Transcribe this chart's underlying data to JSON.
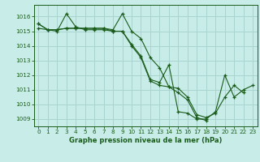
{
  "title": "Graphe pression niveau de la mer (hPa)",
  "bg_color": "#c8ece8",
  "grid_color": "#aad4d0",
  "line_color": "#1a5c1a",
  "xlim": [
    -0.5,
    23.5
  ],
  "ylim": [
    1008.5,
    1016.8
  ],
  "yticks": [
    1009,
    1010,
    1011,
    1012,
    1013,
    1014,
    1015,
    1016
  ],
  "xticks": [
    0,
    1,
    2,
    3,
    4,
    5,
    6,
    7,
    8,
    9,
    10,
    11,
    12,
    13,
    14,
    15,
    16,
    17,
    18,
    19,
    20,
    21,
    22,
    23
  ],
  "series1": [
    1015.2,
    1015.1,
    1015.0,
    1016.2,
    1015.3,
    1015.1,
    1015.1,
    1015.1,
    1015.0,
    1015.0,
    1014.1,
    1013.3,
    1011.7,
    1011.5,
    1012.7,
    1009.5,
    1009.4,
    1009.0,
    1009.0,
    1009.5,
    1012.0,
    1010.5,
    1011.0,
    1011.3
  ],
  "series2": [
    1015.5,
    1015.1,
    1015.1,
    1015.2,
    1015.2,
    1015.2,
    1015.2,
    1015.2,
    1015.1,
    1016.2,
    1015.0,
    1014.5,
    1013.2,
    1012.5,
    1011.2,
    1011.1,
    1010.5,
    1009.3,
    1009.1,
    1009.4,
    1010.5,
    1011.3,
    1010.8,
    null
  ],
  "series3": [
    1015.5,
    1015.1,
    1015.1,
    1015.2,
    1015.2,
    1015.2,
    1015.2,
    1015.2,
    1015.0,
    1015.0,
    1014.0,
    1013.2,
    1011.6,
    1011.3,
    1011.2,
    1010.8,
    1010.3,
    1009.1,
    1008.9,
    null,
    null,
    null,
    null,
    null
  ],
  "title_fontsize": 6.0,
  "tick_fontsize": 5.2
}
